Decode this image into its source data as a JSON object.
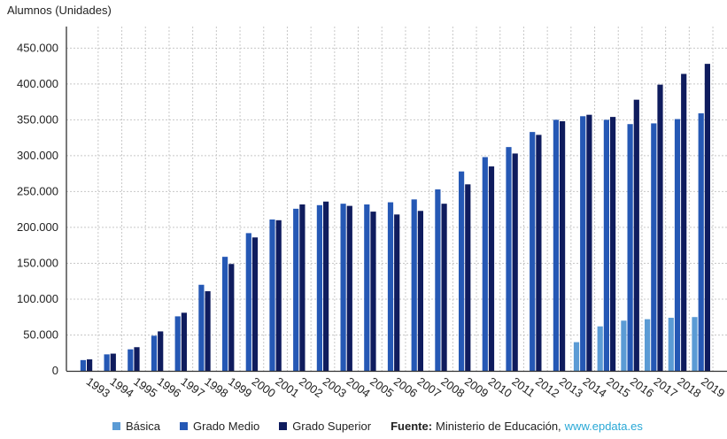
{
  "chart_data": {
    "type": "bar",
    "title": "",
    "ylabel": "Alumnos (Unidades)",
    "xlabel": "",
    "ylim": [
      0,
      480000
    ],
    "yticks": [
      0,
      50000,
      100000,
      150000,
      200000,
      250000,
      300000,
      350000,
      400000,
      450000
    ],
    "ytick_labels": [
      "0",
      "50.000",
      "100.000",
      "150.000",
      "200.000",
      "250.000",
      "300.000",
      "350.000",
      "400.000",
      "450.000"
    ],
    "grid": true,
    "categories": [
      "1993",
      "1994",
      "1995",
      "1996",
      "1997",
      "1998",
      "1999",
      "2000",
      "2001",
      "2002",
      "2003",
      "2004",
      "2005",
      "2006",
      "2007",
      "2008",
      "2009",
      "2010",
      "2011",
      "2012",
      "2013",
      "2014",
      "2015",
      "2016",
      "2017",
      "2018",
      "2019"
    ],
    "series": [
      {
        "name": "Básica",
        "color": "#5b9bd5",
        "values": [
          null,
          null,
          null,
          null,
          null,
          null,
          null,
          null,
          null,
          null,
          null,
          null,
          null,
          null,
          null,
          null,
          null,
          null,
          null,
          null,
          null,
          40000,
          62000,
          70000,
          72000,
          74000,
          75000
        ]
      },
      {
        "name": "Grado Medio",
        "color": "#2558b5",
        "values": [
          15000,
          23000,
          30000,
          49000,
          76000,
          120000,
          159000,
          192000,
          211000,
          226000,
          231000,
          233000,
          232000,
          235000,
          239000,
          253000,
          278000,
          298000,
          312000,
          333000,
          350000,
          355000,
          350000,
          344000,
          345000,
          351000,
          359000
        ]
      },
      {
        "name": "Grado Superior",
        "color": "#0f1c5e",
        "values": [
          16000,
          24000,
          33000,
          55000,
          81000,
          111000,
          149000,
          186000,
          210000,
          232000,
          236000,
          230000,
          222000,
          218000,
          223000,
          233000,
          260000,
          285000,
          303000,
          329000,
          348000,
          357000,
          354000,
          378000,
          399000,
          414000,
          428000
        ]
      }
    ]
  },
  "legend": {
    "basica": "Básica",
    "grado_medio": "Grado Medio",
    "grado_superior": "Grado Superior",
    "source_label": "Fuente:",
    "source_text": "Ministerio de Educación,",
    "source_url": "www.epdata.es"
  },
  "colors": {
    "basica": "#5b9bd5",
    "grado_medio": "#2558b5",
    "grado_superior": "#0f1c5e",
    "link": "#29a8d6"
  }
}
